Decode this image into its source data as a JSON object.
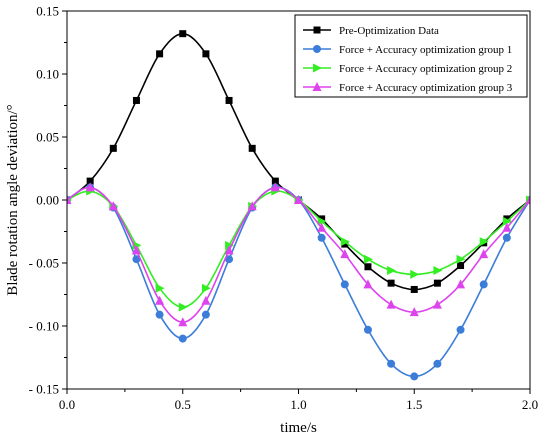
{
  "chart_data": {
    "type": "line",
    "xlabel": "time/s",
    "ylabel": "Blade rotation angle deviation/°",
    "xlim": [
      0.0,
      2.0
    ],
    "ylim": [
      -0.15,
      0.15
    ],
    "xticks": [
      0.0,
      0.5,
      1.0,
      1.5,
      2.0
    ],
    "xtick_labels": [
      "0.0",
      "0.5",
      "1.0",
      "1.5",
      "2.0"
    ],
    "yticks": [
      0.15,
      0.1,
      0.05,
      0.0,
      -0.05,
      -0.1,
      -0.15
    ],
    "ytick_labels": [
      "0.15",
      "0.10",
      "0.05",
      "0.00",
      "- 0.05",
      "- 0.10",
      "- 0.15"
    ],
    "grid": false,
    "legend_position": "top-right",
    "series": [
      {
        "name": "Pre-Optimization Data",
        "color": "#000000",
        "marker": "square",
        "x": [
          0.0,
          0.1,
          0.2,
          0.3,
          0.4,
          0.5,
          0.6,
          0.7,
          0.8,
          0.9,
          1.0,
          1.1,
          1.2,
          1.3,
          1.4,
          1.5,
          1.6,
          1.7,
          1.8,
          1.9,
          2.0
        ],
        "y": [
          0.0,
          0.015,
          0.041,
          0.079,
          0.116,
          0.132,
          0.116,
          0.079,
          0.041,
          0.015,
          0.0,
          -0.015,
          -0.035,
          -0.053,
          -0.066,
          -0.071,
          -0.066,
          -0.052,
          -0.034,
          -0.015,
          0.0
        ]
      },
      {
        "name": "Force + Accuracy optimization group 1",
        "color": "#3b7dd8",
        "marker": "circle",
        "x": [
          0.0,
          0.1,
          0.2,
          0.3,
          0.4,
          0.5,
          0.6,
          0.7,
          0.8,
          0.9,
          1.0,
          1.1,
          1.2,
          1.3,
          1.4,
          1.5,
          1.6,
          1.7,
          1.8,
          1.9,
          2.0
        ],
        "y": [
          0.0,
          0.01,
          -0.006,
          -0.047,
          -0.091,
          -0.11,
          -0.091,
          -0.047,
          -0.006,
          0.01,
          0.0,
          -0.03,
          -0.067,
          -0.103,
          -0.13,
          -0.14,
          -0.13,
          -0.103,
          -0.067,
          -0.03,
          0.0
        ]
      },
      {
        "name": "Force + Accuracy optimization group 2",
        "color": "#33ee22",
        "marker": "triangle-right",
        "x": [
          0.0,
          0.1,
          0.2,
          0.3,
          0.4,
          0.5,
          0.6,
          0.7,
          0.8,
          0.9,
          1.0,
          1.1,
          1.2,
          1.3,
          1.4,
          1.5,
          1.6,
          1.7,
          1.8,
          1.9,
          2.0
        ],
        "y": [
          0.0,
          0.007,
          -0.005,
          -0.036,
          -0.07,
          -0.085,
          -0.07,
          -0.036,
          -0.005,
          0.007,
          0.0,
          -0.017,
          -0.033,
          -0.047,
          -0.056,
          -0.059,
          -0.056,
          -0.047,
          -0.033,
          -0.017,
          0.0
        ]
      },
      {
        "name": "Force + Accuracy optimization group 3",
        "color": "#dd44ee",
        "marker": "triangle-up",
        "x": [
          0.0,
          0.1,
          0.2,
          0.3,
          0.4,
          0.5,
          0.6,
          0.7,
          0.8,
          0.9,
          1.0,
          1.1,
          1.2,
          1.3,
          1.4,
          1.5,
          1.6,
          1.7,
          1.8,
          1.9,
          2.0
        ],
        "y": [
          0.0,
          0.01,
          -0.005,
          -0.04,
          -0.08,
          -0.097,
          -0.08,
          -0.04,
          -0.005,
          0.01,
          0.0,
          -0.022,
          -0.043,
          -0.067,
          -0.083,
          -0.089,
          -0.083,
          -0.067,
          -0.043,
          -0.022,
          0.0
        ]
      }
    ]
  }
}
